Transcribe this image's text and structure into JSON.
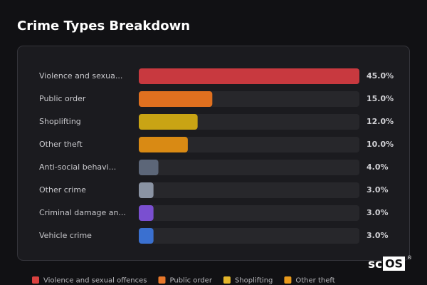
{
  "chart_data": {
    "type": "bar",
    "orientation": "horizontal",
    "title": "Crime Types Breakdown",
    "categories": [
      "Violence and sexua...",
      "Public order",
      "Shoplifting",
      "Other theft",
      "Anti-social behavi...",
      "Other crime",
      "Criminal damage an...",
      "Vehicle crime"
    ],
    "values": [
      45,
      15,
      12,
      10,
      4,
      3,
      3,
      3
    ],
    "value_labels": [
      "45.0%",
      "15.0%",
      "12.0%",
      "10.0%",
      "4.0%",
      "3.0%",
      "3.0%",
      "3.0%"
    ],
    "colors": [
      "#c8393f",
      "#e0701f",
      "#c9a414",
      "#d98a14",
      "#5c6678",
      "#8a93a3",
      "#7a4fd0",
      "#3a70d0"
    ],
    "xlim": [
      0,
      45
    ],
    "legend": [
      {
        "name": "Violence and sexual offences",
        "color": "#d9413f"
      },
      {
        "name": "Public order",
        "color": "#e8772a"
      },
      {
        "name": "Shoplifting",
        "color": "#e3b52a"
      },
      {
        "name": "Other theft",
        "color": "#e89a1c"
      }
    ]
  },
  "watermark": {
    "prefix": "sc",
    "boxed": "OS",
    "mark": "®"
  }
}
